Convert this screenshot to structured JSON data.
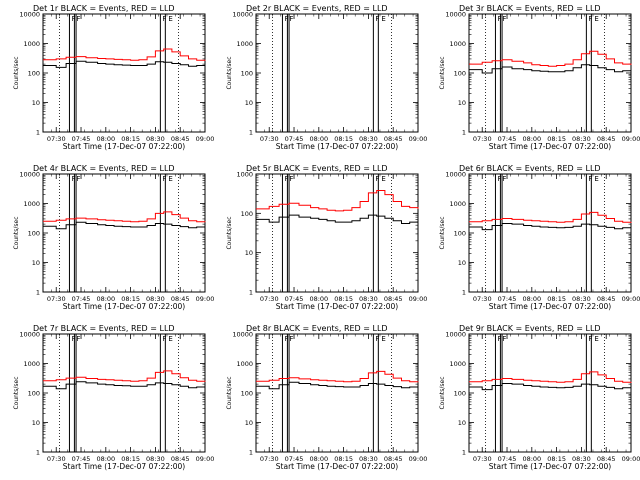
{
  "chart_data": [
    {
      "type": "line",
      "title": "Det 1r BLACK = Events, RED = LLD",
      "xlabel": "Start Time (17-Dec-07 07:22:00)",
      "ylabel": "Counts/sec",
      "yscale": "log",
      "ylim": [
        1,
        10000
      ],
      "xlim": [
        "07:22",
        "09:00"
      ],
      "xticks": [
        "07:30",
        "07:45",
        "08:00",
        "08:15",
        "08:30",
        "08:45",
        "09:00"
      ],
      "yticks": [
        "1",
        "10",
        "100",
        "1000",
        "10000"
      ],
      "x": [
        "07:22",
        "07:30",
        "07:36",
        "07:42",
        "07:48",
        "07:55",
        "08:00",
        "08:05",
        "08:10",
        "08:15",
        "08:20",
        "08:25",
        "08:30",
        "08:35",
        "08:40",
        "08:45",
        "08:50",
        "08:55",
        "09:00"
      ],
      "series": [
        {
          "name": "Events",
          "color": "#000000",
          "values": [
            180,
            155,
            210,
            250,
            230,
            210,
            200,
            190,
            185,
            180,
            180,
            200,
            240,
            230,
            210,
            190,
            170,
            180,
            160
          ]
        },
        {
          "name": "LLD",
          "color": "#ff0000",
          "values": [
            280,
            300,
            340,
            360,
            330,
            310,
            300,
            290,
            280,
            270,
            280,
            350,
            560,
            650,
            520,
            380,
            300,
            270,
            260
          ]
        }
      ],
      "vlines_solid": [
        "07:38",
        "07:41",
        "07:42",
        "08:33",
        "08:36"
      ],
      "vlines_dotted": [
        "07:38",
        "08:44"
      ],
      "markers": [
        "F",
        "F",
        "F",
        "E"
      ]
    },
    {
      "type": "line",
      "title": "Det 2r BLACK = Events, RED = LLD",
      "xlabel": "Start Time (17-Dec-07 07:22:00)",
      "ylabel": "Counts/sec",
      "yscale": "log",
      "ylim": [
        1,
        10000
      ],
      "xlim": [
        "07:22",
        "09:00"
      ],
      "xticks": [
        "07:30",
        "07:45",
        "08:00",
        "08:15",
        "08:30",
        "08:45",
        "09:00"
      ],
      "yticks": [
        "1",
        "10",
        "100",
        "1000",
        "10000"
      ],
      "x": [],
      "series": [],
      "vlines_solid": [
        "07:38",
        "07:41",
        "07:42",
        "08:33",
        "08:36"
      ],
      "vlines_dotted": [
        "07:38",
        "08:44"
      ],
      "markers": [
        "F",
        "F",
        "F",
        "E"
      ]
    },
    {
      "type": "line",
      "title": "Det 3r BLACK = Events, RED = LLD",
      "xlabel": "Start Time (17-Dec-07 07:22:00)",
      "ylabel": "Counts/sec",
      "yscale": "log",
      "ylim": [
        1,
        10000
      ],
      "xlim": [
        "07:22",
        "09:00"
      ],
      "xticks": [
        "07:30",
        "07:45",
        "08:00",
        "08:15",
        "08:30",
        "08:45",
        "09:00"
      ],
      "yticks": [
        "1",
        "10",
        "100",
        "1000",
        "10000"
      ],
      "x": [
        "07:22",
        "07:30",
        "07:36",
        "07:42",
        "07:48",
        "07:55",
        "08:00",
        "08:05",
        "08:10",
        "08:15",
        "08:20",
        "08:25",
        "08:30",
        "08:35",
        "08:40",
        "08:45",
        "08:50",
        "08:55",
        "09:00"
      ],
      "series": [
        {
          "name": "Events",
          "color": "#000000",
          "values": [
            130,
            100,
            140,
            160,
            140,
            130,
            120,
            115,
            110,
            110,
            120,
            150,
            190,
            180,
            150,
            130,
            110,
            120,
            100
          ]
        },
        {
          "name": "LLD",
          "color": "#ff0000",
          "values": [
            200,
            230,
            260,
            280,
            250,
            220,
            190,
            180,
            170,
            180,
            200,
            280,
            450,
            550,
            430,
            300,
            220,
            200,
            190
          ]
        }
      ],
      "vlines_solid": [
        "07:38",
        "07:41",
        "07:42",
        "08:33",
        "08:36"
      ],
      "vlines_dotted": [
        "07:38",
        "08:44"
      ],
      "markers": [
        "F",
        "F",
        "F",
        "E"
      ]
    },
    {
      "type": "line",
      "title": "Det 4r BLACK = Events, RED = LLD",
      "xlabel": "Start Time (17-Dec-07 07:22:00)",
      "ylabel": "Counts/sec",
      "yscale": "log",
      "ylim": [
        1,
        10000
      ],
      "xlim": [
        "07:22",
        "09:00"
      ],
      "xticks": [
        "07:30",
        "07:45",
        "08:00",
        "08:15",
        "08:30",
        "08:45",
        "09:00"
      ],
      "yticks": [
        "1",
        "10",
        "100",
        "1000",
        "10000"
      ],
      "x": [
        "07:22",
        "07:30",
        "07:36",
        "07:42",
        "07:48",
        "07:55",
        "08:00",
        "08:05",
        "08:10",
        "08:15",
        "08:20",
        "08:25",
        "08:30",
        "08:35",
        "08:40",
        "08:45",
        "08:50",
        "08:55",
        "09:00"
      ],
      "series": [
        {
          "name": "Events",
          "color": "#000000",
          "values": [
            170,
            140,
            190,
            230,
            210,
            190,
            180,
            170,
            165,
            160,
            160,
            180,
            210,
            200,
            180,
            165,
            150,
            160,
            140
          ]
        },
        {
          "name": "LLD",
          "color": "#ff0000",
          "values": [
            250,
            270,
            300,
            320,
            300,
            280,
            270,
            260,
            250,
            240,
            250,
            300,
            460,
            520,
            420,
            320,
            260,
            240,
            230
          ]
        }
      ],
      "vlines_solid": [
        "07:38",
        "07:41",
        "07:42",
        "08:33",
        "08:36"
      ],
      "vlines_dotted": [
        "07:38",
        "08:44"
      ],
      "markers": [
        "F",
        "F",
        "F",
        "E"
      ]
    },
    {
      "type": "line",
      "title": "Det 5r BLACK = Events, RED = LLD",
      "xlabel": "Start Time (17-Dec-07 07:22:00)",
      "ylabel": "Counts/sec",
      "yscale": "log",
      "ylim": [
        1,
        1000
      ],
      "xlim": [
        "07:22",
        "09:00"
      ],
      "xticks": [
        "07:30",
        "07:45",
        "08:00",
        "08:15",
        "08:30",
        "08:45",
        "09:00"
      ],
      "yticks": [
        "1",
        "10",
        "100",
        "1000"
      ],
      "x": [
        "07:22",
        "07:30",
        "07:36",
        "07:42",
        "07:48",
        "07:55",
        "08:00",
        "08:05",
        "08:10",
        "08:15",
        "08:20",
        "08:25",
        "08:30",
        "08:35",
        "08:40",
        "08:45",
        "08:50",
        "08:55",
        "09:00"
      ],
      "series": [
        {
          "name": "Events",
          "color": "#000000",
          "values": [
            70,
            60,
            80,
            90,
            80,
            75,
            70,
            65,
            60,
            60,
            65,
            75,
            90,
            85,
            75,
            65,
            55,
            60,
            50
          ]
        },
        {
          "name": "LLD",
          "color": "#ff0000",
          "values": [
            130,
            150,
            170,
            180,
            160,
            140,
            130,
            120,
            115,
            120,
            140,
            200,
            330,
            380,
            300,
            200,
            150,
            140,
            130
          ]
        }
      ],
      "vlines_solid": [
        "07:38",
        "07:41",
        "07:42",
        "08:33",
        "08:36"
      ],
      "vlines_dotted": [
        "07:38",
        "08:44"
      ],
      "markers": [
        "F",
        "F",
        "F",
        "E"
      ]
    },
    {
      "type": "line",
      "title": "Det 6r BLACK = Events, RED = LLD",
      "xlabel": "Start Time (17-Dec-07 07:22:00)",
      "ylabel": "Counts/sec",
      "yscale": "log",
      "ylim": [
        1,
        10000
      ],
      "xlim": [
        "07:22",
        "09:00"
      ],
      "xticks": [
        "07:30",
        "07:45",
        "08:00",
        "08:15",
        "08:30",
        "08:45",
        "09:00"
      ],
      "yticks": [
        "1",
        "10",
        "100",
        "1000",
        "10000"
      ],
      "x": [
        "07:22",
        "07:30",
        "07:36",
        "07:42",
        "07:48",
        "07:55",
        "08:00",
        "08:05",
        "08:10",
        "08:15",
        "08:20",
        "08:25",
        "08:30",
        "08:35",
        "08:40",
        "08:45",
        "08:50",
        "08:55",
        "09:00"
      ],
      "series": [
        {
          "name": "Events",
          "color": "#000000",
          "values": [
            160,
            130,
            180,
            210,
            200,
            180,
            170,
            160,
            155,
            150,
            155,
            170,
            200,
            190,
            170,
            155,
            140,
            150,
            130
          ]
        },
        {
          "name": "LLD",
          "color": "#ff0000",
          "values": [
            240,
            260,
            290,
            310,
            290,
            270,
            260,
            250,
            240,
            230,
            240,
            290,
            440,
            500,
            400,
            310,
            250,
            230,
            220
          ]
        }
      ],
      "vlines_solid": [
        "07:38",
        "07:41",
        "07:42",
        "08:33",
        "08:36"
      ],
      "vlines_dotted": [
        "07:38",
        "08:44"
      ],
      "markers": [
        "F",
        "F",
        "F",
        "E"
      ]
    },
    {
      "type": "line",
      "title": "Det 7r BLACK = Events, RED = LLD",
      "xlabel": "Start Time (17-Dec-07 07:22:00)",
      "ylabel": "Counts/sec",
      "yscale": "log",
      "ylim": [
        1,
        10000
      ],
      "xlim": [
        "07:22",
        "09:00"
      ],
      "xticks": [
        "07:30",
        "07:45",
        "08:00",
        "08:15",
        "08:30",
        "08:45",
        "09:00"
      ],
      "yticks": [
        "1",
        "10",
        "100",
        "1000",
        "10000"
      ],
      "x": [
        "07:22",
        "07:30",
        "07:36",
        "07:42",
        "07:48",
        "07:55",
        "08:00",
        "08:05",
        "08:10",
        "08:15",
        "08:20",
        "08:25",
        "08:30",
        "08:35",
        "08:40",
        "08:45",
        "08:50",
        "08:55",
        "09:00"
      ],
      "series": [
        {
          "name": "Events",
          "color": "#000000",
          "values": [
            170,
            140,
            200,
            240,
            220,
            200,
            190,
            180,
            175,
            170,
            170,
            190,
            220,
            210,
            190,
            170,
            150,
            160,
            140
          ]
        },
        {
          "name": "LLD",
          "color": "#ff0000",
          "values": [
            260,
            280,
            320,
            340,
            310,
            290,
            280,
            270,
            260,
            250,
            260,
            320,
            500,
            560,
            450,
            330,
            270,
            250,
            240
          ]
        }
      ],
      "vlines_solid": [
        "07:38",
        "07:41",
        "07:42",
        "08:33",
        "08:36"
      ],
      "vlines_dotted": [
        "07:38",
        "08:44"
      ],
      "markers": [
        "F",
        "F",
        "F",
        "E"
      ]
    },
    {
      "type": "line",
      "title": "Det 8r BLACK = Events, RED = LLD",
      "xlabel": "Start Time (17-Dec-07 07:22:00)",
      "ylabel": "Counts/sec",
      "yscale": "log",
      "ylim": [
        1,
        10000
      ],
      "xlim": [
        "07:22",
        "09:00"
      ],
      "xticks": [
        "07:30",
        "07:45",
        "08:00",
        "08:15",
        "08:30",
        "08:45",
        "09:00"
      ],
      "yticks": [
        "1",
        "10",
        "100",
        "1000",
        "10000"
      ],
      "x": [
        "07:22",
        "07:30",
        "07:36",
        "07:42",
        "07:48",
        "07:55",
        "08:00",
        "08:05",
        "08:10",
        "08:15",
        "08:20",
        "08:25",
        "08:30",
        "08:35",
        "08:40",
        "08:45",
        "08:50",
        "08:55",
        "09:00"
      ],
      "series": [
        {
          "name": "Events",
          "color": "#000000",
          "values": [
            170,
            140,
            190,
            230,
            210,
            190,
            180,
            170,
            165,
            160,
            160,
            180,
            210,
            200,
            180,
            165,
            150,
            160,
            140
          ]
        },
        {
          "name": "LLD",
          "color": "#ff0000",
          "values": [
            250,
            270,
            310,
            330,
            300,
            280,
            270,
            260,
            250,
            240,
            250,
            310,
            480,
            540,
            430,
            320,
            260,
            240,
            230
          ]
        }
      ],
      "vlines_solid": [
        "07:38",
        "07:41",
        "07:42",
        "08:33",
        "08:36"
      ],
      "vlines_dotted": [
        "07:38",
        "08:44"
      ],
      "markers": [
        "F",
        "F",
        "F",
        "E"
      ]
    },
    {
      "type": "line",
      "title": "Det 9r BLACK = Events, RED = LLD",
      "xlabel": "Start Time (17-Dec-07 07:22:00)",
      "ylabel": "Counts/sec",
      "yscale": "log",
      "ylim": [
        1,
        10000
      ],
      "xlim": [
        "07:22",
        "09:00"
      ],
      "xticks": [
        "07:30",
        "07:45",
        "08:00",
        "08:15",
        "08:30",
        "08:45",
        "09:00"
      ],
      "yticks": [
        "1",
        "10",
        "100",
        "1000",
        "10000"
      ],
      "x": [
        "07:22",
        "07:30",
        "07:36",
        "07:42",
        "07:48",
        "07:55",
        "08:00",
        "08:05",
        "08:10",
        "08:15",
        "08:20",
        "08:25",
        "08:30",
        "08:35",
        "08:40",
        "08:45",
        "08:50",
        "08:55",
        "09:00"
      ],
      "series": [
        {
          "name": "Events",
          "color": "#000000",
          "values": [
            160,
            130,
            180,
            210,
            200,
            180,
            170,
            160,
            155,
            150,
            155,
            170,
            200,
            190,
            170,
            155,
            140,
            150,
            130
          ]
        },
        {
          "name": "LLD",
          "color": "#ff0000",
          "values": [
            240,
            260,
            290,
            310,
            290,
            270,
            260,
            250,
            240,
            230,
            240,
            290,
            450,
            520,
            410,
            310,
            250,
            230,
            220
          ]
        }
      ],
      "vlines_solid": [
        "07:38",
        "07:41",
        "07:42",
        "08:33",
        "08:36"
      ],
      "vlines_dotted": [
        "07:38",
        "08:44"
      ],
      "markers": [
        "F",
        "F",
        "F",
        "E"
      ]
    }
  ]
}
